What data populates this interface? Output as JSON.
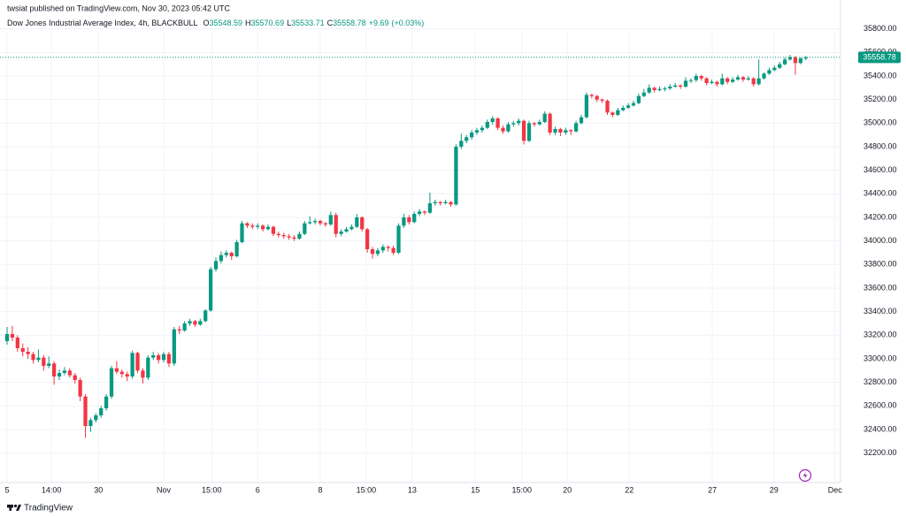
{
  "chart_data": {
    "type": "candlestick",
    "publisher": "twsiat published on TradingView.com, Nov 30, 2023 05:42 UTC",
    "title": "Dow Jones Industrial Average Index, 4h, BLACKBULL",
    "ohlc_keys": [
      "O",
      "H",
      "L",
      "C"
    ],
    "change": "+9.69",
    "change_pct": "(+0.03%)",
    "brand": "TradingView",
    "up_color": "#089981",
    "down_color": "#f23645",
    "grid": true,
    "ohlc": [
      [
        33150,
        33270,
        33120,
        33210
      ],
      [
        33210,
        33280,
        33150,
        33180
      ],
      [
        33180,
        33200,
        33060,
        33090
      ],
      [
        33090,
        33130,
        33020,
        33060
      ],
      [
        33060,
        33100,
        33000,
        33040
      ],
      [
        33040,
        33060,
        32960,
        32990
      ],
      [
        32990,
        33080,
        32970,
        33010
      ],
      [
        33010,
        33030,
        32900,
        32940
      ],
      [
        32940,
        33020,
        32920,
        32960
      ],
      [
        32960,
        32980,
        32780,
        32850
      ],
      [
        32850,
        32910,
        32820,
        32880
      ],
      [
        32880,
        32930,
        32860,
        32900
      ],
      [
        32900,
        32920,
        32840,
        32860
      ],
      [
        32860,
        32880,
        32790,
        32820
      ],
      [
        32820,
        32840,
        32640,
        32680
      ],
      [
        32680,
        32700,
        32330,
        32430
      ],
      [
        32430,
        32500,
        32380,
        32480
      ],
      [
        32480,
        32540,
        32460,
        32520
      ],
      [
        32520,
        32600,
        32500,
        32580
      ],
      [
        32580,
        32700,
        32560,
        32680
      ],
      [
        32680,
        32940,
        32660,
        32920
      ],
      [
        32920,
        32980,
        32870,
        32890
      ],
      [
        32890,
        32910,
        32840,
        32870
      ],
      [
        32870,
        32890,
        32810,
        32850
      ],
      [
        32850,
        33070,
        32830,
        33050
      ],
      [
        33050,
        33060,
        32880,
        32900
      ],
      [
        32900,
        32920,
        32790,
        32840
      ],
      [
        32840,
        33030,
        32820,
        33010
      ],
      [
        33010,
        33060,
        32990,
        33030
      ],
      [
        33030,
        33050,
        32960,
        32990
      ],
      [
        32990,
        33060,
        32970,
        33040
      ],
      [
        33040,
        33060,
        32930,
        32960
      ],
      [
        32960,
        33270,
        32940,
        33250
      ],
      [
        33250,
        33280,
        33210,
        33240
      ],
      [
        33240,
        33320,
        33230,
        33300
      ],
      [
        33300,
        33340,
        33280,
        33320
      ],
      [
        33320,
        33330,
        33270,
        33290
      ],
      [
        33290,
        33340,
        33280,
        33320
      ],
      [
        33320,
        33420,
        33310,
        33410
      ],
      [
        33410,
        33780,
        33400,
        33760
      ],
      [
        33760,
        33860,
        33740,
        33830
      ],
      [
        33830,
        33910,
        33810,
        33880
      ],
      [
        33880,
        33920,
        33860,
        33900
      ],
      [
        33900,
        33910,
        33840,
        33870
      ],
      [
        33870,
        34010,
        33860,
        33990
      ],
      [
        33990,
        34170,
        33980,
        34150
      ],
      [
        34150,
        34160,
        34110,
        34130
      ],
      [
        34130,
        34150,
        34100,
        34120
      ],
      [
        34120,
        34150,
        34100,
        34130
      ],
      [
        34130,
        34140,
        34080,
        34100
      ],
      [
        34100,
        34140,
        34090,
        34120
      ],
      [
        34120,
        34130,
        34040,
        34060
      ],
      [
        34060,
        34080,
        34030,
        34050
      ],
      [
        34050,
        34070,
        34020,
        34040
      ],
      [
        34040,
        34060,
        34010,
        34030
      ],
      [
        34030,
        34050,
        34000,
        34020
      ],
      [
        34020,
        34080,
        34010,
        34060
      ],
      [
        34060,
        34170,
        34050,
        34150
      ],
      [
        34150,
        34210,
        34140,
        34160
      ],
      [
        34160,
        34190,
        34140,
        34170
      ],
      [
        34170,
        34180,
        34130,
        34150
      ],
      [
        34150,
        34160,
        34120,
        34140
      ],
      [
        34140,
        34250,
        34130,
        34220
      ],
      [
        34220,
        34240,
        34030,
        34060
      ],
      [
        34060,
        34100,
        34040,
        34080
      ],
      [
        34080,
        34120,
        34070,
        34100
      ],
      [
        34100,
        34140,
        34090,
        34120
      ],
      [
        34120,
        34230,
        34110,
        34200
      ],
      [
        34200,
        34210,
        34080,
        34100
      ],
      [
        34100,
        34110,
        33900,
        33930
      ],
      [
        33930,
        33950,
        33850,
        33890
      ],
      [
        33890,
        33940,
        33870,
        33920
      ],
      [
        33920,
        33970,
        33900,
        33950
      ],
      [
        33950,
        33960,
        33910,
        33940
      ],
      [
        33940,
        33960,
        33880,
        33900
      ],
      [
        33900,
        34150,
        33890,
        34130
      ],
      [
        34130,
        34230,
        34110,
        34200
      ],
      [
        34200,
        34220,
        34140,
        34160
      ],
      [
        34160,
        34250,
        34150,
        34230
      ],
      [
        34230,
        34270,
        34210,
        34250
      ],
      [
        34250,
        34260,
        34220,
        34240
      ],
      [
        34240,
        34410,
        34230,
        34320
      ],
      [
        34320,
        34350,
        34300,
        34330
      ],
      [
        34330,
        34340,
        34300,
        34320
      ],
      [
        34320,
        34350,
        34310,
        34330
      ],
      [
        34330,
        34340,
        34290,
        34310
      ],
      [
        34310,
        34820,
        34300,
        34800
      ],
      [
        34800,
        34910,
        34780,
        34850
      ],
      [
        34850,
        34900,
        34830,
        34880
      ],
      [
        34880,
        34940,
        34860,
        34920
      ],
      [
        34920,
        34960,
        34900,
        34940
      ],
      [
        34940,
        34980,
        34920,
        34960
      ],
      [
        34960,
        35030,
        34950,
        35010
      ],
      [
        35010,
        35060,
        34990,
        35040
      ],
      [
        35040,
        35050,
        34940,
        34960
      ],
      [
        34960,
        34980,
        34910,
        34930
      ],
      [
        34930,
        35010,
        34920,
        34990
      ],
      [
        34990,
        35020,
        34970,
        35000
      ],
      [
        35000,
        35040,
        34980,
        35020
      ],
      [
        35020,
        35030,
        34820,
        34850
      ],
      [
        34850,
        35020,
        34840,
        35000
      ],
      [
        35000,
        35010,
        34970,
        34990
      ],
      [
        34990,
        35030,
        34980,
        35010
      ],
      [
        35010,
        35100,
        35000,
        35080
      ],
      [
        35080,
        35090,
        34900,
        34920
      ],
      [
        34920,
        34970,
        34900,
        34950
      ],
      [
        34950,
        34960,
        34890,
        34920
      ],
      [
        34920,
        34960,
        34900,
        34940
      ],
      [
        34940,
        34950,
        34900,
        34930
      ],
      [
        34930,
        35020,
        34920,
        35000
      ],
      [
        35000,
        35070,
        34990,
        35050
      ],
      [
        35050,
        35260,
        35040,
        35240
      ],
      [
        35240,
        35250,
        35210,
        35230
      ],
      [
        35230,
        35240,
        35180,
        35200
      ],
      [
        35200,
        35210,
        35170,
        35190
      ],
      [
        35190,
        35200,
        35070,
        35090
      ],
      [
        35090,
        35100,
        35050,
        35070
      ],
      [
        35070,
        35130,
        35060,
        35110
      ],
      [
        35110,
        35150,
        35100,
        35130
      ],
      [
        35130,
        35170,
        35120,
        35150
      ],
      [
        35150,
        35190,
        35140,
        35170
      ],
      [
        35170,
        35250,
        35160,
        35230
      ],
      [
        35230,
        35290,
        35220,
        35260
      ],
      [
        35260,
        35330,
        35250,
        35300
      ],
      [
        35300,
        35310,
        35260,
        35280
      ],
      [
        35280,
        35310,
        35270,
        35290
      ],
      [
        35290,
        35310,
        35270,
        35295
      ],
      [
        35295,
        35330,
        35280,
        35310
      ],
      [
        35310,
        35340,
        35300,
        35320
      ],
      [
        35320,
        35330,
        35290,
        35310
      ],
      [
        35310,
        35390,
        35300,
        35360
      ],
      [
        35360,
        35380,
        35340,
        35365
      ],
      [
        35365,
        35420,
        35350,
        35400
      ],
      [
        35400,
        35410,
        35360,
        35380
      ],
      [
        35380,
        35390,
        35320,
        35340
      ],
      [
        35340,
        35370,
        35330,
        35350
      ],
      [
        35350,
        35360,
        35310,
        35330
      ],
      [
        35330,
        35420,
        35320,
        35380
      ],
      [
        35380,
        35390,
        35330,
        35350
      ],
      [
        35350,
        35390,
        35340,
        35370
      ],
      [
        35370,
        35410,
        35360,
        35390
      ],
      [
        35390,
        35400,
        35350,
        35370
      ],
      [
        35370,
        35400,
        35360,
        35380
      ],
      [
        35380,
        35390,
        35310,
        35330
      ],
      [
        35330,
        35540,
        35320,
        35380
      ],
      [
        35380,
        35430,
        35370,
        35420
      ],
      [
        35420,
        35470,
        35410,
        35450
      ],
      [
        35450,
        35490,
        35440,
        35470
      ],
      [
        35470,
        35520,
        35460,
        35500
      ],
      [
        35500,
        35560,
        35490,
        35540
      ],
      [
        35540,
        35580,
        35530,
        35560
      ],
      [
        35560,
        35570,
        35410,
        35510
      ],
      [
        35510,
        35560,
        35500,
        35549
      ],
      [
        35548.59,
        35570.69,
        35533.71,
        35558.78
      ]
    ],
    "xlim": [
      -1.36,
      159.66
    ],
    "xticks": [
      {
        "value": 0,
        "label": "5"
      },
      {
        "value": 8.5,
        "label": "14:00"
      },
      {
        "value": 17.5,
        "label": "30"
      },
      {
        "value": 30,
        "label": "Nov"
      },
      {
        "value": 39.2,
        "label": "15:00"
      },
      {
        "value": 48,
        "label": "6"
      },
      {
        "value": 60,
        "label": "8"
      },
      {
        "value": 68.8,
        "label": "15:00"
      },
      {
        "value": 77.6,
        "label": "13"
      },
      {
        "value": 89.7,
        "label": "15"
      },
      {
        "value": 98.6,
        "label": "15:00"
      },
      {
        "value": 107.3,
        "label": "20"
      },
      {
        "value": 119.2,
        "label": "22"
      },
      {
        "value": 135.1,
        "label": "27"
      },
      {
        "value": 146.9,
        "label": "29"
      },
      {
        "value": 158.6,
        "label": "Dec"
      }
    ],
    "ylim": [
      31950,
      36000
    ],
    "yticks": [
      {
        "value": 32200,
        "label": "32200.00"
      },
      {
        "value": 32400,
        "label": "32400.00"
      },
      {
        "value": 32600,
        "label": "32600.00"
      },
      {
        "value": 32800,
        "label": "32800.00"
      },
      {
        "value": 33000,
        "label": "33000.00"
      },
      {
        "value": 33200,
        "label": "33200.00"
      },
      {
        "value": 33400,
        "label": "33400.00"
      },
      {
        "value": 33600,
        "label": "33600.00"
      },
      {
        "value": 33800,
        "label": "33800.00"
      },
      {
        "value": 34000,
        "label": "34000.00"
      },
      {
        "value": 34200,
        "label": "34200.00"
      },
      {
        "value": 34400,
        "label": "34400.00"
      },
      {
        "value": 34600,
        "label": "34600.00"
      },
      {
        "value": 34800,
        "label": "34800.00"
      },
      {
        "value": 35000,
        "label": "35000.00"
      },
      {
        "value": 35200,
        "label": "35200.00"
      },
      {
        "value": 35400,
        "label": "35400.00"
      },
      {
        "value": 35600,
        "label": "35600.00"
      },
      {
        "value": 35800,
        "label": "35800.00"
      }
    ]
  }
}
